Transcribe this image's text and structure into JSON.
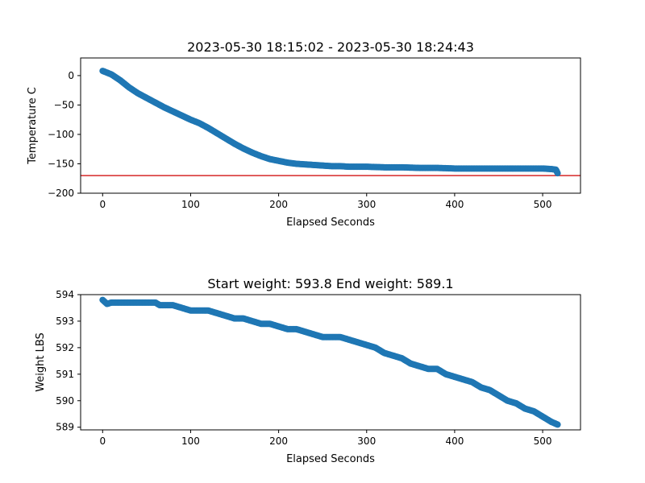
{
  "chart_data": [
    {
      "type": "scatter",
      "title": "2023-05-30 18:15:02 - 2023-05-30 18:24:43",
      "xlabel": "Elapsed Seconds",
      "ylabel": "Temperature C",
      "xlim": [
        -25,
        543
      ],
      "ylim": [
        -200,
        30
      ],
      "xticks": [
        0,
        100,
        200,
        300,
        400,
        500
      ],
      "yticks": [
        0,
        -50,
        -100,
        -150,
        -200
      ],
      "xtick_labels": [
        "0",
        "100",
        "200",
        "300",
        "400",
        "500"
      ],
      "ytick_labels": [
        "0",
        "−50",
        "−100",
        "−150",
        "−200"
      ],
      "reference_line": {
        "y": -170,
        "color": "#d62728"
      },
      "series": [
        {
          "color": "#1f77b4",
          "x": [
            0,
            10,
            20,
            30,
            40,
            50,
            60,
            70,
            80,
            90,
            100,
            110,
            120,
            130,
            140,
            150,
            160,
            170,
            180,
            190,
            200,
            210,
            220,
            230,
            240,
            250,
            260,
            270,
            280,
            290,
            300,
            320,
            340,
            360,
            380,
            400,
            420,
            440,
            460,
            480,
            500,
            510,
            515,
            517
          ],
          "y": [
            8,
            2,
            -8,
            -20,
            -30,
            -38,
            -46,
            -54,
            -61,
            -68,
            -75,
            -81,
            -89,
            -98,
            -107,
            -116,
            -124,
            -131,
            -137,
            -142,
            -145,
            -148,
            -150,
            -151,
            -152,
            -153,
            -154,
            -154,
            -155,
            -155,
            -155,
            -156,
            -156,
            -157,
            -157,
            -158,
            -158,
            -158,
            -158,
            -158,
            -158,
            -159,
            -160,
            -166
          ]
        }
      ]
    },
    {
      "type": "scatter",
      "title": "Start weight: 593.8 End weight: 589.1",
      "xlabel": "Elapsed Seconds",
      "ylabel": "Weight LBS",
      "xlim": [
        -25,
        543
      ],
      "ylim": [
        588.9,
        594.0
      ],
      "xticks": [
        0,
        100,
        200,
        300,
        400,
        500
      ],
      "yticks": [
        589,
        590,
        591,
        592,
        593,
        594
      ],
      "xtick_labels": [
        "0",
        "100",
        "200",
        "300",
        "400",
        "500"
      ],
      "ytick_labels": [
        "589",
        "590",
        "591",
        "592",
        "593",
        "594"
      ],
      "series": [
        {
          "color": "#1f77b4",
          "x": [
            0,
            5,
            10,
            20,
            30,
            40,
            50,
            60,
            65,
            80,
            90,
            100,
            110,
            120,
            130,
            140,
            150,
            160,
            170,
            180,
            190,
            200,
            210,
            220,
            230,
            240,
            250,
            260,
            270,
            280,
            290,
            300,
            310,
            320,
            330,
            340,
            350,
            360,
            370,
            380,
            390,
            400,
            410,
            420,
            430,
            440,
            450,
            460,
            470,
            480,
            490,
            500,
            510,
            517
          ],
          "y": [
            593.8,
            593.65,
            593.7,
            593.7,
            593.7,
            593.7,
            593.7,
            593.7,
            593.6,
            593.6,
            593.5,
            593.4,
            593.4,
            593.4,
            593.3,
            593.2,
            593.1,
            593.1,
            593.0,
            592.9,
            592.9,
            592.8,
            592.7,
            592.7,
            592.6,
            592.5,
            592.4,
            592.4,
            592.4,
            592.3,
            592.2,
            592.1,
            592.0,
            591.8,
            591.7,
            591.6,
            591.4,
            591.3,
            591.2,
            591.2,
            591.0,
            590.9,
            590.8,
            590.7,
            590.5,
            590.4,
            590.2,
            590.0,
            589.9,
            589.7,
            589.6,
            589.4,
            589.2,
            589.1
          ]
        }
      ]
    }
  ]
}
